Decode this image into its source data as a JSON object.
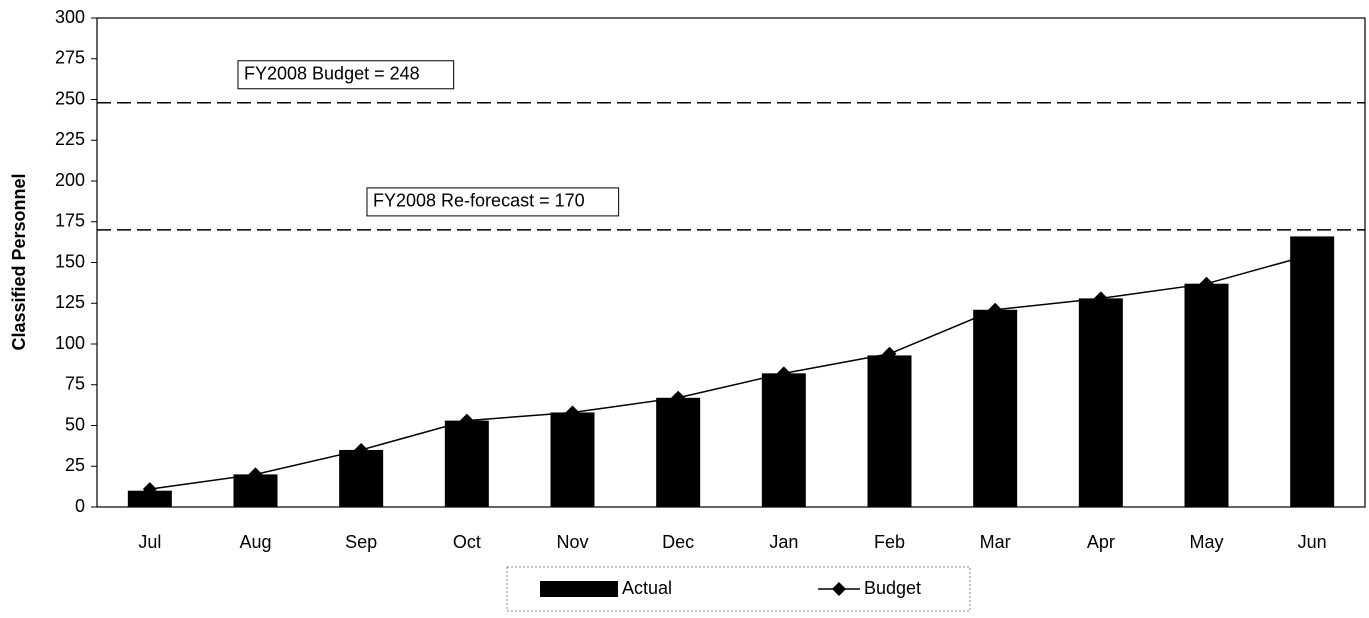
{
  "chart_data": {
    "type": "bar",
    "y_label": "Classified Personnel",
    "categories": [
      "Jul",
      "Aug",
      "Sep",
      "Oct",
      "Nov",
      "Dec",
      "Jan",
      "Feb",
      "Mar",
      "Apr",
      "May",
      "Jun"
    ],
    "series": [
      {
        "name": "Actual",
        "type": "bar",
        "color": "#000000",
        "values": [
          10,
          20,
          35,
          53,
          58,
          67,
          82,
          93,
          121,
          128,
          137,
          166
        ]
      },
      {
        "name": "Budget",
        "type": "line",
        "color": "#000000",
        "values": [
          11,
          20,
          35,
          53,
          58,
          67,
          82,
          94,
          121,
          128,
          137,
          155
        ]
      }
    ],
    "reference_lines": [
      {
        "label": "FY2008 Budget = 248",
        "value": 248
      },
      {
        "label": "FY2008 Re-forecast = 170",
        "value": 170
      }
    ],
    "ylim": [
      0,
      300
    ],
    "yticks": [
      0,
      25,
      50,
      75,
      100,
      125,
      150,
      175,
      200,
      225,
      250,
      275,
      300
    ],
    "legend": "bottom"
  }
}
